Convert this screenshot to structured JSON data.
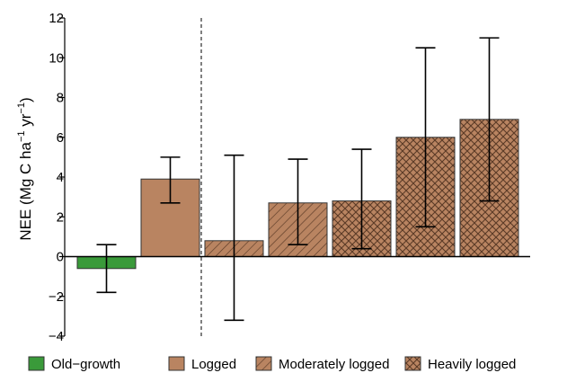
{
  "chart_data": {
    "type": "bar",
    "title": "",
    "xlabel": "",
    "ylabel": {
      "prefix": "NEE (Mg C ha",
      "sup1": "−1",
      "middle": " yr",
      "sup2": "−1",
      "suffix": ")"
    },
    "ylim": [
      -4,
      12
    ],
    "yticks": [
      "−4",
      "−2",
      "0",
      "2",
      "4",
      "6",
      "8",
      "10",
      "12"
    ],
    "grid": false,
    "bars": [
      {
        "group": "Old-growth",
        "value": -0.6,
        "err_low": -1.8,
        "err_high": 0.6,
        "fill": "#3a9a3a",
        "pattern": "none"
      },
      {
        "group": "Logged",
        "value": 3.9,
        "err_low": 2.7,
        "err_high": 5.0,
        "fill": "#b98461",
        "pattern": "none"
      },
      {
        "group": "Moderately logged",
        "value": 0.8,
        "err_low": -3.2,
        "err_high": 5.1,
        "fill": "#b98461",
        "pattern": "diagonal"
      },
      {
        "group": "Moderately logged",
        "value": 2.7,
        "err_low": 0.6,
        "err_high": 4.9,
        "fill": "#b98461",
        "pattern": "diagonal"
      },
      {
        "group": "Heavily logged",
        "value": 2.8,
        "err_low": 0.4,
        "err_high": 5.4,
        "fill": "#b98461",
        "pattern": "crosshatch"
      },
      {
        "group": "Heavily logged",
        "value": 6.0,
        "err_low": 1.5,
        "err_high": 10.5,
        "fill": "#b98461",
        "pattern": "crosshatch"
      },
      {
        "group": "Heavily logged",
        "value": 6.9,
        "err_low": 2.8,
        "err_high": 11.0,
        "fill": "#b98461",
        "pattern": "crosshatch"
      }
    ],
    "divider_after_bar": 2,
    "legend": {
      "position": "bottom",
      "entries": [
        {
          "label": "Old−growth",
          "fill": "#3a9a3a",
          "pattern": "none"
        },
        {
          "label": "Logged",
          "fill": "#b98461",
          "pattern": "none"
        },
        {
          "label": "Moderately logged",
          "fill": "#b98461",
          "pattern": "diagonal"
        },
        {
          "label": "Heavily logged",
          "fill": "#b98461",
          "pattern": "crosshatch"
        }
      ]
    }
  }
}
